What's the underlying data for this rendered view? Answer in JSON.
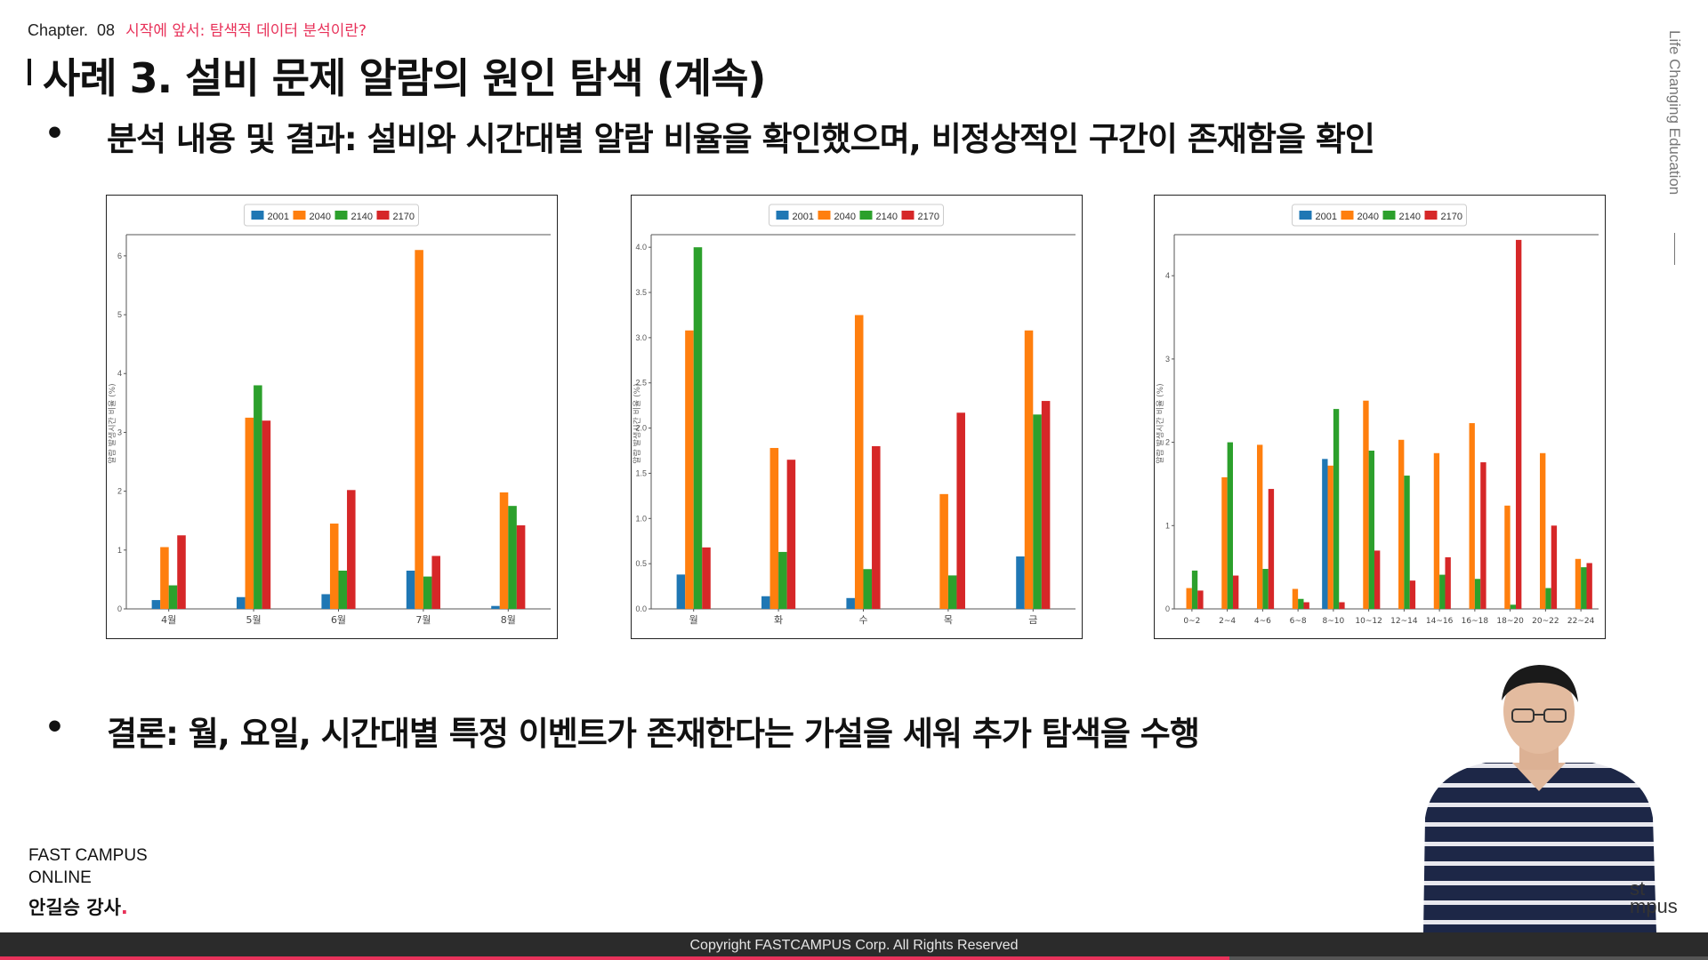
{
  "header": {
    "chapter_label": "Chapter.",
    "chapter_number": "08",
    "chapter_subtitle": "시작에 앞서: 탐색적 데이터 분석이란?",
    "title": "사례 3. 설비 문제 알람의 원인 탐색 (계속)"
  },
  "bullets": [
    {
      "dot": "•",
      "text": "분석 내용 및 결과: 설비와 시간대별 알람 비율을 확인했으며, 비정상적인 구간이 존재함을 확인"
    },
    {
      "dot": "•",
      "text": "결론: 월, 요일, 시간대별 특정 이벤트가 존재한다는 가설을 세워 추가 탐색을 수행"
    }
  ],
  "colors": {
    "accent": "#e8325a",
    "series": [
      "#1f77b4",
      "#ff7f0e",
      "#2ca02c",
      "#d62728"
    ]
  },
  "chart_data": [
    {
      "type": "bar",
      "legend": [
        "2001",
        "2040",
        "2140",
        "2170"
      ],
      "legend_placement": "top-center",
      "categories": [
        "4월",
        "5월",
        "6월",
        "7월",
        "8월"
      ],
      "ylabel": "알람 발생시간 비율 (%)",
      "ylim": [
        0,
        6.3
      ],
      "yticks": [
        "0",
        "1",
        "2",
        "3",
        "4",
        "5",
        "6"
      ],
      "series": [
        {
          "name": "2001",
          "values": [
            0.15,
            0.2,
            0.25,
            0.65,
            0.05
          ]
        },
        {
          "name": "2040",
          "values": [
            1.05,
            3.25,
            1.45,
            6.1,
            1.98
          ]
        },
        {
          "name": "2140",
          "values": [
            0.4,
            3.8,
            0.65,
            0.55,
            1.75
          ]
        },
        {
          "name": "2170",
          "values": [
            1.25,
            3.2,
            2.02,
            0.9,
            1.42
          ]
        }
      ]
    },
    {
      "type": "bar",
      "legend": [
        "2001",
        "2040",
        "2140",
        "2170"
      ],
      "legend_placement": "top-center",
      "categories": [
        "월",
        "화",
        "수",
        "목",
        "금"
      ],
      "ylabel": "알람 발생시간 비율 (%)",
      "ylim": [
        0,
        4.1
      ],
      "yticks": [
        "0.0",
        "0.5",
        "1.0",
        "1.5",
        "2.0",
        "2.5",
        "3.0",
        "3.5",
        "4.0"
      ],
      "series": [
        {
          "name": "2001",
          "values": [
            0.38,
            0.14,
            0.12,
            0,
            0.58
          ]
        },
        {
          "name": "2040",
          "values": [
            3.08,
            1.78,
            3.25,
            1.27,
            3.08
          ]
        },
        {
          "name": "2140",
          "values": [
            4.0,
            0.63,
            0.44,
            0.37,
            2.15
          ]
        },
        {
          "name": "2170",
          "values": [
            0.68,
            1.65,
            1.8,
            2.17,
            2.3
          ]
        }
      ]
    },
    {
      "type": "bar",
      "legend": [
        "2001",
        "2040",
        "2140",
        "2170"
      ],
      "legend_placement": "top-center",
      "categories": [
        "0~2",
        "2~4",
        "4~6",
        "6~8",
        "8~10",
        "10~12",
        "12~14",
        "14~16",
        "16~18",
        "18~20",
        "20~22",
        "22~24"
      ],
      "ylabel": "알람 발생시간 비율 (%)",
      "ylim": [
        0,
        4.45
      ],
      "yticks": [
        "0",
        "1",
        "2",
        "3",
        "4"
      ],
      "series": [
        {
          "name": "2001",
          "values": [
            0,
            0,
            0,
            0,
            1.8,
            0,
            0,
            0,
            0,
            0,
            0,
            0
          ]
        },
        {
          "name": "2040",
          "values": [
            0.25,
            1.58,
            1.97,
            0.24,
            1.72,
            2.5,
            2.03,
            1.87,
            2.23,
            1.24,
            1.87,
            0.6
          ]
        },
        {
          "name": "2140",
          "values": [
            0.46,
            2.0,
            0.48,
            0.12,
            2.4,
            1.9,
            1.6,
            0.41,
            0.36,
            0.05,
            0.25,
            0.5
          ]
        },
        {
          "name": "2170",
          "values": [
            0.22,
            0.4,
            1.44,
            0.08,
            0.08,
            0.7,
            0.34,
            0.62,
            1.76,
            4.43,
            1.0,
            0.55
          ]
        }
      ]
    }
  ],
  "sidebar": {
    "text": "Life Changing Education"
  },
  "brand": {
    "line1": "FAST CAMPUS",
    "line2": "ONLINE",
    "instructor": "안길승 강사",
    "instructor_dot": "."
  },
  "webcam": {
    "logo_line1": "st",
    "logo_line2": "mpus"
  },
  "footer": {
    "copyright": "Copyright FASTCAMPUS Corp. All Rights Reserved"
  },
  "video": {
    "progress": 0.72
  }
}
